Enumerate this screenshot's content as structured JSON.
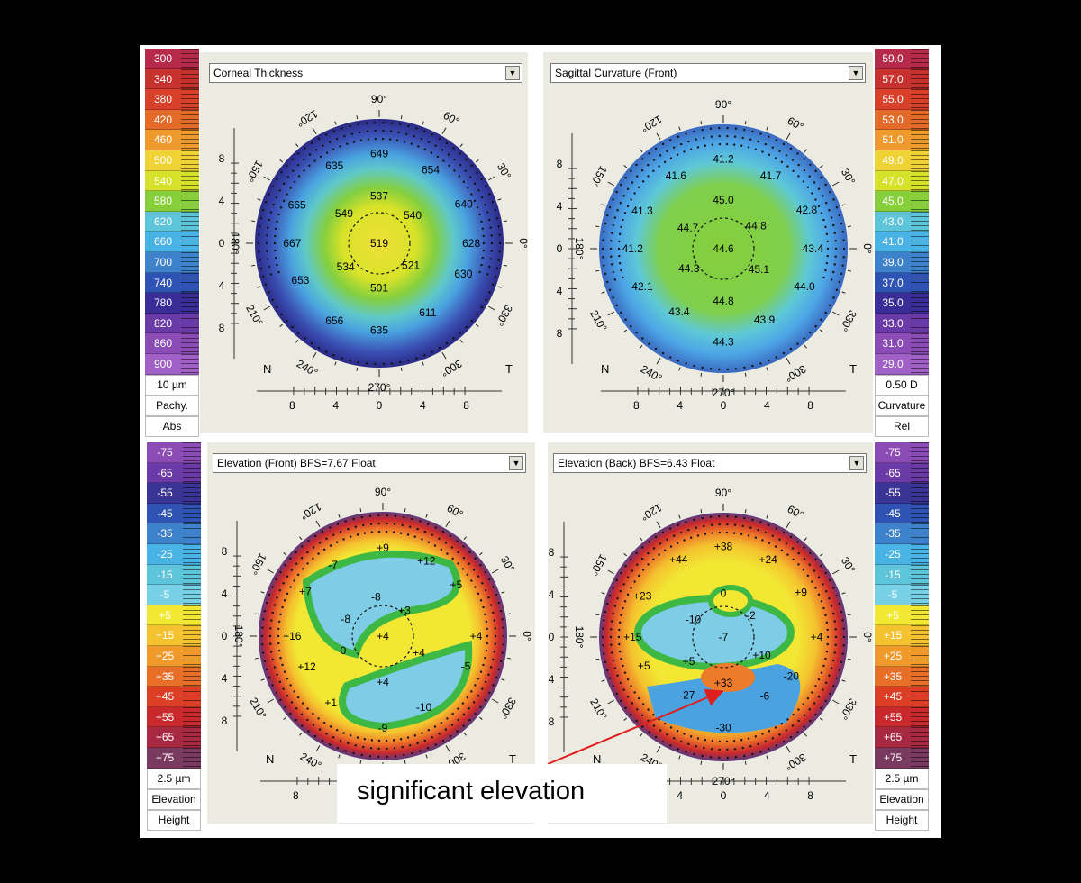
{
  "maps": [
    {
      "id": "tl",
      "title": "Corneal Thickness",
      "legend_side": "left",
      "legend_values": [
        "300",
        "340",
        "380",
        "420",
        "460",
        "500",
        "540",
        "580",
        "620",
        "660",
        "700",
        "740",
        "780",
        "820",
        "860",
        "900"
      ],
      "legend_colors": [
        "#b62a4a",
        "#c7322f",
        "#d8402a",
        "#e46a2a",
        "#ee9a2c",
        "#efd233",
        "#d6e12a",
        "#86cf3b",
        "#5dc4d9",
        "#4ab3e6",
        "#3f82cc",
        "#2f53b2",
        "#3a2d97",
        "#6a3aa6",
        "#8c4cb6",
        "#a060c6"
      ],
      "legend_labels": [
        "10 µm",
        "Pachy.",
        "Abs"
      ],
      "numbers": [
        {
          "t": "649",
          "r": 0.72,
          "a": 90
        },
        {
          "t": "635",
          "r": 0.72,
          "a": 120
        },
        {
          "t": "654",
          "r": 0.72,
          "a": 55
        },
        {
          "t": "665",
          "r": 0.73,
          "a": 155
        },
        {
          "t": "640",
          "r": 0.75,
          "a": 25
        },
        {
          "t": "537",
          "r": 0.38,
          "a": 90
        },
        {
          "t": "549",
          "r": 0.37,
          "a": 140
        },
        {
          "t": "540",
          "r": 0.35,
          "a": 40
        },
        {
          "t": "667",
          "r": 0.7,
          "a": 180
        },
        {
          "t": "519",
          "r": 0.0,
          "a": 0
        },
        {
          "t": "628",
          "r": 0.74,
          "a": 0
        },
        {
          "t": "534",
          "r": 0.33,
          "a": 215
        },
        {
          "t": "521",
          "r": 0.31,
          "a": 325
        },
        {
          "t": "653",
          "r": 0.7,
          "a": 205
        },
        {
          "t": "501",
          "r": 0.36,
          "a": 270
        },
        {
          "t": "630",
          "r": 0.72,
          "a": 340
        },
        {
          "t": "656",
          "r": 0.72,
          "a": 240
        },
        {
          "t": "635",
          "r": 0.7,
          "a": 270
        },
        {
          "t": "611",
          "r": 0.68,
          "a": 305
        }
      ],
      "angles": [
        {
          "t": "90°",
          "a": 90
        },
        {
          "t": "60°",
          "a": 60
        },
        {
          "t": "30°",
          "a": 30
        },
        {
          "t": "0°",
          "a": 0
        },
        {
          "t": "330°",
          "a": 330
        },
        {
          "t": "300°",
          "a": 300
        },
        {
          "t": "270°",
          "a": 270
        },
        {
          "t": "240°",
          "a": 240
        },
        {
          "t": "210°",
          "a": 210
        },
        {
          "t": "180°",
          "a": 180
        },
        {
          "t": "150°",
          "a": 150
        },
        {
          "t": "120°",
          "a": 120
        }
      ],
      "y_ticks": [
        "8",
        "4",
        "0",
        "4",
        "8"
      ],
      "x_ticks": [
        "8",
        "4",
        "0",
        "4",
        "8"
      ],
      "corner_left": "N",
      "corner_right": "T"
    },
    {
      "id": "tr",
      "title": "Sagittal Curvature (Front)",
      "legend_side": "right",
      "legend_values": [
        "59.0",
        "57.0",
        "55.0",
        "53.0",
        "51.0",
        "49.0",
        "47.0",
        "45.0",
        "43.0",
        "41.0",
        "39.0",
        "37.0",
        "35.0",
        "33.0",
        "31.0",
        "29.0"
      ],
      "legend_colors": [
        "#b62a4a",
        "#c7322f",
        "#d8402a",
        "#e46a2a",
        "#ee9a2c",
        "#efd233",
        "#d6e12a",
        "#86cf3b",
        "#5dc4d9",
        "#4ab3e6",
        "#3f82cc",
        "#2f53b2",
        "#3a2d97",
        "#6a3aa6",
        "#8c4cb6",
        "#a060c6"
      ],
      "legend_labels": [
        "0.50 D",
        "Curvature",
        "Rel"
      ],
      "numbers": [
        {
          "t": "41.2",
          "r": 0.72,
          "a": 90
        },
        {
          "t": "41.6",
          "r": 0.7,
          "a": 123
        },
        {
          "t": "41.7",
          "r": 0.7,
          "a": 57
        },
        {
          "t": "41.3",
          "r": 0.72,
          "a": 155
        },
        {
          "t": "45.0",
          "r": 0.39,
          "a": 90
        },
        {
          "t": "42.8",
          "r": 0.74,
          "a": 25
        },
        {
          "t": "44.7",
          "r": 0.33,
          "a": 150
        },
        {
          "t": "44.8",
          "r": 0.32,
          "a": 35
        },
        {
          "t": "41.2",
          "r": 0.73,
          "a": 180
        },
        {
          "t": "44.6",
          "r": 0.0,
          "a": 0
        },
        {
          "t": "43.4",
          "r": 0.72,
          "a": 0
        },
        {
          "t": "44.3",
          "r": 0.32,
          "a": 210
        },
        {
          "t": "45.1",
          "r": 0.33,
          "a": 330
        },
        {
          "t": "42.1",
          "r": 0.72,
          "a": 205
        },
        {
          "t": "44.8",
          "r": 0.42,
          "a": 270
        },
        {
          "t": "44.0",
          "r": 0.72,
          "a": 335
        },
        {
          "t": "43.4",
          "r": 0.62,
          "a": 235
        },
        {
          "t": "44.3",
          "r": 0.75,
          "a": 270
        },
        {
          "t": "43.9",
          "r": 0.66,
          "a": 300
        }
      ],
      "angles": [
        {
          "t": "90°",
          "a": 90
        },
        {
          "t": "60°",
          "a": 60
        },
        {
          "t": "30°",
          "a": 30
        },
        {
          "t": "0°",
          "a": 0
        },
        {
          "t": "330°",
          "a": 330
        },
        {
          "t": "300°",
          "a": 300
        },
        {
          "t": "270°",
          "a": 270
        },
        {
          "t": "240°",
          "a": 240
        },
        {
          "t": "210°",
          "a": 210
        },
        {
          "t": "180°",
          "a": 180
        },
        {
          "t": "150°",
          "a": 150
        },
        {
          "t": "120°",
          "a": 120
        }
      ],
      "y_ticks": [
        "8",
        "4",
        "0",
        "4",
        "8"
      ],
      "x_ticks": [
        "8",
        "4",
        "0",
        "4",
        "8"
      ],
      "corner_left": "N",
      "corner_right": "T"
    },
    {
      "id": "bl",
      "title": "Elevation (Front)  BFS=7.67 Float",
      "legend_side": "left",
      "legend_values": [
        "-75",
        "-65",
        "-55",
        "-45",
        "-35",
        "-25",
        "-15",
        "-5",
        "+5",
        "+15",
        "+25",
        "+35",
        "+45",
        "+55",
        "+65",
        "+75"
      ],
      "legend_colors": [
        "#8c4cb6",
        "#6a3aa6",
        "#3a3594",
        "#2f53b2",
        "#3f82cc",
        "#4ab3e6",
        "#5dc4d9",
        "#78d0e6",
        "#f2e834",
        "#f4c22e",
        "#f09a2c",
        "#e86f28",
        "#dd3f26",
        "#c9282c",
        "#a82a42",
        "#7a3a60"
      ],
      "legend_labels": [
        "2.5 µm",
        "Elevation",
        "Height"
      ],
      "numbers": [
        {
          "t": "+9",
          "r": 0.71,
          "a": 90
        },
        {
          "t": "-7",
          "r": 0.7,
          "a": 125
        },
        {
          "t": "+12",
          "r": 0.7,
          "a": 60
        },
        {
          "t": "-8",
          "r": 0.32,
          "a": 100
        },
        {
          "t": "+7",
          "r": 0.72,
          "a": 150
        },
        {
          "t": "+5",
          "r": 0.72,
          "a": 35
        },
        {
          "t": "-8",
          "r": 0.33,
          "a": 155
        },
        {
          "t": "+3",
          "r": 0.27,
          "a": 50
        },
        {
          "t": "+16",
          "r": 0.73,
          "a": 180
        },
        {
          "t": "+4",
          "r": 0.0,
          "a": 0
        },
        {
          "t": "+4",
          "r": 0.75,
          "a": 0
        },
        {
          "t": "0",
          "r": 0.34,
          "a": 200
        },
        {
          "t": "+4",
          "r": 0.32,
          "a": 335
        },
        {
          "t": "+12",
          "r": 0.66,
          "a": 202
        },
        {
          "t": "+4",
          "r": 0.37,
          "a": 270
        },
        {
          "t": "-5",
          "r": 0.71,
          "a": 340
        },
        {
          "t": "+1",
          "r": 0.68,
          "a": 232
        },
        {
          "t": "-9",
          "r": 0.74,
          "a": 270
        },
        {
          "t": "-10",
          "r": 0.66,
          "a": 300
        }
      ],
      "angles": [
        {
          "t": "90°",
          "a": 90
        },
        {
          "t": "60°",
          "a": 60
        },
        {
          "t": "30°",
          "a": 30
        },
        {
          "t": "0°",
          "a": 0
        },
        {
          "t": "330°",
          "a": 330
        },
        {
          "t": "300°",
          "a": 300
        },
        {
          "t": "270°",
          "a": 270
        },
        {
          "t": "240°",
          "a": 240
        },
        {
          "t": "210°",
          "a": 210
        },
        {
          "t": "180°",
          "a": 180
        },
        {
          "t": "150°",
          "a": 150
        },
        {
          "t": "120°",
          "a": 120
        }
      ],
      "y_ticks": [
        "8",
        "4",
        "0",
        "4",
        "8"
      ],
      "x_ticks": [
        "8"
      ],
      "corner_left": "N",
      "corner_right": "T"
    },
    {
      "id": "br",
      "title": "Elevation (Back)  BFS=6.43 Float",
      "legend_side": "right",
      "legend_values": [
        "-75",
        "-65",
        "-55",
        "-45",
        "-35",
        "-25",
        "-15",
        "-5",
        "+5",
        "+15",
        "+25",
        "+35",
        "+45",
        "+55",
        "+65",
        "+75"
      ],
      "legend_colors": [
        "#8c4cb6",
        "#6a3aa6",
        "#3a3594",
        "#2f53b2",
        "#3f82cc",
        "#4ab3e6",
        "#5dc4d9",
        "#78d0e6",
        "#f2e834",
        "#f4c22e",
        "#f09a2c",
        "#e86f28",
        "#dd3f26",
        "#c9282c",
        "#a82a42",
        "#7a3a60"
      ],
      "legend_labels": [
        "2.5 µm",
        "Elevation",
        "Height"
      ],
      "numbers": [
        {
          "t": "+38",
          "r": 0.73,
          "a": 90
        },
        {
          "t": "+44",
          "r": 0.72,
          "a": 120
        },
        {
          "t": "+24",
          "r": 0.72,
          "a": 60
        },
        {
          "t": "0",
          "r": 0.35,
          "a": 90
        },
        {
          "t": "+23",
          "r": 0.73,
          "a": 153
        },
        {
          "t": "+9",
          "r": 0.72,
          "a": 30
        },
        {
          "t": "-10",
          "r": 0.28,
          "a": 150
        },
        {
          "t": "-2",
          "r": 0.28,
          "a": 38
        },
        {
          "t": "+15",
          "r": 0.73,
          "a": 180
        },
        {
          "t": "-7",
          "r": 0.0,
          "a": 0
        },
        {
          "t": "+4",
          "r": 0.75,
          "a": 0
        },
        {
          "t": "+5",
          "r": 0.34,
          "a": 215
        },
        {
          "t": "+10",
          "r": 0.34,
          "a": 335
        },
        {
          "t": "+5",
          "r": 0.68,
          "a": 200
        },
        {
          "t": "+33",
          "r": 0.37,
          "a": 270
        },
        {
          "t": "-20",
          "r": 0.63,
          "a": 330
        },
        {
          "t": "-27",
          "r": 0.55,
          "a": 238
        },
        {
          "t": "-30",
          "r": 0.73,
          "a": 270
        },
        {
          "t": "-6",
          "r": 0.58,
          "a": 305
        }
      ],
      "angles": [
        {
          "t": "90°",
          "a": 90
        },
        {
          "t": "60°",
          "a": 60
        },
        {
          "t": "30°",
          "a": 30
        },
        {
          "t": "0°",
          "a": 0
        },
        {
          "t": "330°",
          "a": 330
        },
        {
          "t": "300°",
          "a": 300
        },
        {
          "t": "270°",
          "a": 270
        },
        {
          "t": "240°",
          "a": 240
        },
        {
          "t": "210°",
          "a": 210
        },
        {
          "t": "180°",
          "a": 180
        },
        {
          "t": "150°",
          "a": 150
        },
        {
          "t": "120°",
          "a": 120
        }
      ],
      "y_ticks": [
        "8",
        "4",
        "0",
        "4",
        "8"
      ],
      "x_ticks": [
        "4",
        "0",
        "4",
        "8"
      ],
      "corner_left": "N",
      "corner_right": "T"
    }
  ],
  "callout": {
    "text": "significant elevation",
    "arrow_color": "#e01e1e"
  }
}
